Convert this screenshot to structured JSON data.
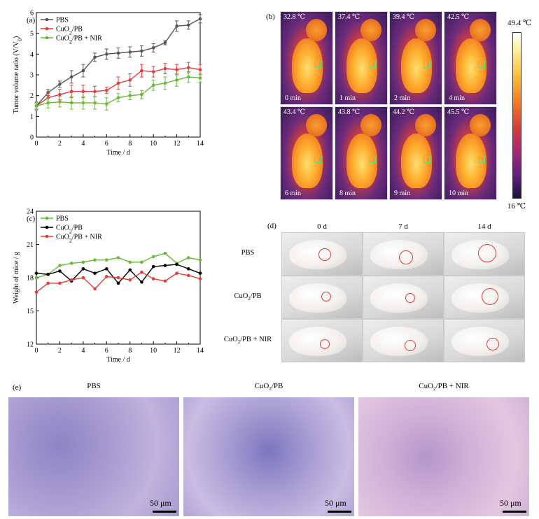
{
  "chart_data": [
    {
      "panel": "(a)",
      "type": "line",
      "xlabel": "Time / d",
      "ylabel": "Tumor volume ratio (V/V₀)",
      "xlim": [
        0,
        14
      ],
      "ylim": [
        0,
        6
      ],
      "xticks": [
        0,
        2,
        4,
        6,
        8,
        10,
        12,
        14
      ],
      "yticks": [
        0,
        1,
        2,
        3,
        4,
        5,
        6
      ],
      "grid": false,
      "legend": "top-left",
      "x": [
        0,
        1,
        2,
        3,
        4,
        5,
        6,
        7,
        8,
        9,
        10,
        11,
        12,
        13,
        14
      ],
      "series": [
        {
          "name": "PBS",
          "color": "#555555",
          "values": [
            1.5,
            2.15,
            2.55,
            2.9,
            3.2,
            3.85,
            4.0,
            4.05,
            4.1,
            4.15,
            4.3,
            4.55,
            5.35,
            5.4,
            5.7
          ],
          "err": [
            0.15,
            0.15,
            0.15,
            0.3,
            0.3,
            0.2,
            0.25,
            0.25,
            0.25,
            0.25,
            0.2,
            0.1,
            0.25,
            0.2,
            0.2
          ]
        },
        {
          "name": "CuO₂/PB",
          "color": "#e83a3a",
          "values": [
            1.5,
            1.9,
            2.05,
            2.2,
            2.2,
            2.2,
            2.25,
            2.6,
            2.75,
            3.2,
            3.15,
            3.3,
            3.25,
            3.35,
            3.25
          ],
          "err": [
            0.2,
            0.25,
            0.25,
            0.3,
            0.3,
            0.25,
            0.15,
            0.3,
            0.3,
            0.3,
            0.25,
            0.25,
            0.25,
            0.25,
            0.25
          ]
        },
        {
          "name": "CuO₂/PB + NIR",
          "color": "#66bb33",
          "values": [
            1.5,
            1.65,
            1.7,
            1.65,
            1.65,
            1.65,
            1.6,
            1.9,
            2.0,
            2.05,
            2.5,
            2.6,
            2.75,
            2.9,
            2.85
          ],
          "err": [
            0.2,
            0.25,
            0.25,
            0.3,
            0.3,
            0.3,
            0.3,
            0.2,
            0.2,
            0.2,
            0.25,
            0.3,
            0.3,
            0.25,
            0.2
          ]
        }
      ]
    },
    {
      "panel": "(c)",
      "type": "line",
      "xlabel": "Time / d",
      "ylabel": "Weight of mice / g",
      "xlim": [
        0,
        14
      ],
      "ylim": [
        12,
        24
      ],
      "xticks": [
        0,
        2,
        4,
        6,
        8,
        10,
        12,
        14
      ],
      "yticks": [
        12,
        15,
        18,
        21,
        24
      ],
      "grid": false,
      "legend": "top-left",
      "x": [
        0,
        1,
        2,
        3,
        4,
        5,
        6,
        7,
        8,
        9,
        10,
        11,
        12,
        13,
        14
      ],
      "series": [
        {
          "name": "PBS",
          "color": "#66bb33",
          "values": [
            18.0,
            18.3,
            19.1,
            19.3,
            19.4,
            19.6,
            19.6,
            19.8,
            19.4,
            19.4,
            19.9,
            20.2,
            19.3,
            19.8,
            19.6
          ]
        },
        {
          "name": "CuO₂/PB",
          "color": "#000000",
          "values": [
            18.4,
            18.3,
            18.6,
            17.7,
            18.8,
            18.4,
            18.8,
            17.5,
            18.7,
            17.6,
            19.0,
            19.1,
            19.2,
            18.8,
            18.4
          ]
        },
        {
          "name": "CuO₂/PB + NIR",
          "color": "#e83a3a",
          "values": [
            16.7,
            17.5,
            17.5,
            17.8,
            18.0,
            17.0,
            18.1,
            18.0,
            17.8,
            18.5,
            17.9,
            17.7,
            18.4,
            18.2,
            17.9
          ]
        }
      ]
    }
  ],
  "panel_b": {
    "label": "(b)",
    "frames": [
      {
        "temp": "32.8 ℃",
        "time": "0 min"
      },
      {
        "temp": "37.4 ℃",
        "time": "1 min"
      },
      {
        "temp": "39.4 ℃",
        "time": "2 min"
      },
      {
        "temp": "42.5 ℃",
        "time": "4 min"
      },
      {
        "temp": "43.4 ℃",
        "time": "6 min"
      },
      {
        "temp": "43.8 ℃",
        "time": "8 min"
      },
      {
        "temp": "44.2 ℃",
        "time": "9 min"
      },
      {
        "temp": "45.5 ℃",
        "time": "10 min"
      }
    ],
    "colorbar_max": "49.4 ℃",
    "colorbar_min": "16 ℃"
  },
  "panel_d": {
    "label": "(d)",
    "days": [
      "0 d",
      "7 d",
      "14 d"
    ],
    "groups": [
      "PBS",
      "CuO₂/PB",
      "CuO₂/PB + NIR"
    ]
  },
  "panel_e": {
    "label": "(e)",
    "groups": [
      "PBS",
      "CuO₂/PB",
      "CuO₂/PB + NIR"
    ],
    "scalebar": "50 μm"
  }
}
